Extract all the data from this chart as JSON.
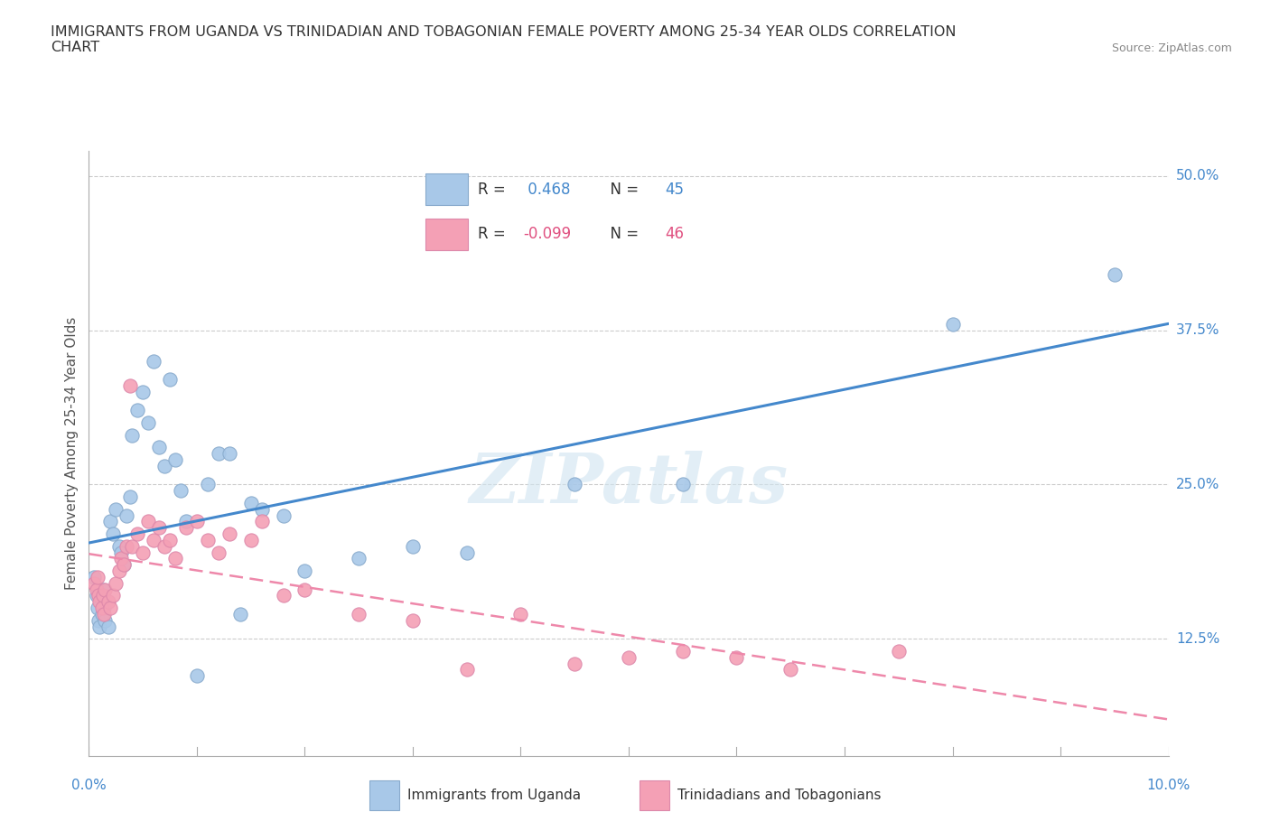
{
  "title": "IMMIGRANTS FROM UGANDA VS TRINIDADIAN AND TOBAGONIAN FEMALE POVERTY AMONG 25-34 YEAR OLDS CORRELATION\nCHART",
  "source": "Source: ZipAtlas.com",
  "ylabel": "Female Poverty Among 25-34 Year Olds",
  "xlim": [
    0.0,
    10.0
  ],
  "ylim": [
    3.0,
    52.0
  ],
  "ytick_vals": [
    12.5,
    25.0,
    37.5,
    50.0
  ],
  "ytick_labels": [
    "12.5%",
    "25.0%",
    "37.5%",
    "50.0%"
  ],
  "blue_color": "#a8c8e8",
  "pink_color": "#f4a0b5",
  "blue_line_color": "#4488cc",
  "pink_line_color": "#ee88aa",
  "watermark": "ZIPatlas",
  "uganda_scatter": [
    [
      0.05,
      17.5
    ],
    [
      0.07,
      16.0
    ],
    [
      0.08,
      15.0
    ],
    [
      0.09,
      14.0
    ],
    [
      0.1,
      13.5
    ],
    [
      0.12,
      14.5
    ],
    [
      0.13,
      16.5
    ],
    [
      0.14,
      15.0
    ],
    [
      0.15,
      14.0
    ],
    [
      0.18,
      13.5
    ],
    [
      0.2,
      22.0
    ],
    [
      0.22,
      21.0
    ],
    [
      0.25,
      23.0
    ],
    [
      0.28,
      20.0
    ],
    [
      0.3,
      19.5
    ],
    [
      0.32,
      18.5
    ],
    [
      0.35,
      22.5
    ],
    [
      0.38,
      24.0
    ],
    [
      0.4,
      29.0
    ],
    [
      0.45,
      31.0
    ],
    [
      0.5,
      32.5
    ],
    [
      0.55,
      30.0
    ],
    [
      0.6,
      35.0
    ],
    [
      0.65,
      28.0
    ],
    [
      0.7,
      26.5
    ],
    [
      0.75,
      33.5
    ],
    [
      0.8,
      27.0
    ],
    [
      0.85,
      24.5
    ],
    [
      0.9,
      22.0
    ],
    [
      1.0,
      9.5
    ],
    [
      1.1,
      25.0
    ],
    [
      1.2,
      27.5
    ],
    [
      1.3,
      27.5
    ],
    [
      1.4,
      14.5
    ],
    [
      1.5,
      23.5
    ],
    [
      1.6,
      23.0
    ],
    [
      1.8,
      22.5
    ],
    [
      2.0,
      18.0
    ],
    [
      2.5,
      19.0
    ],
    [
      3.0,
      20.0
    ],
    [
      3.5,
      19.5
    ],
    [
      4.5,
      25.0
    ],
    [
      5.5,
      25.0
    ],
    [
      8.0,
      38.0
    ],
    [
      9.5,
      42.0
    ]
  ],
  "trinidad_scatter": [
    [
      0.05,
      17.0
    ],
    [
      0.07,
      16.5
    ],
    [
      0.08,
      17.5
    ],
    [
      0.09,
      16.0
    ],
    [
      0.1,
      15.5
    ],
    [
      0.12,
      15.0
    ],
    [
      0.13,
      16.0
    ],
    [
      0.14,
      14.5
    ],
    [
      0.15,
      16.5
    ],
    [
      0.18,
      15.5
    ],
    [
      0.2,
      15.0
    ],
    [
      0.22,
      16.0
    ],
    [
      0.25,
      17.0
    ],
    [
      0.28,
      18.0
    ],
    [
      0.3,
      19.0
    ],
    [
      0.32,
      18.5
    ],
    [
      0.35,
      20.0
    ],
    [
      0.38,
      33.0
    ],
    [
      0.4,
      20.0
    ],
    [
      0.45,
      21.0
    ],
    [
      0.5,
      19.5
    ],
    [
      0.55,
      22.0
    ],
    [
      0.6,
      20.5
    ],
    [
      0.65,
      21.5
    ],
    [
      0.7,
      20.0
    ],
    [
      0.75,
      20.5
    ],
    [
      0.8,
      19.0
    ],
    [
      0.9,
      21.5
    ],
    [
      1.0,
      22.0
    ],
    [
      1.1,
      20.5
    ],
    [
      1.2,
      19.5
    ],
    [
      1.3,
      21.0
    ],
    [
      1.5,
      20.5
    ],
    [
      1.6,
      22.0
    ],
    [
      1.8,
      16.0
    ],
    [
      2.0,
      16.5
    ],
    [
      2.5,
      14.5
    ],
    [
      3.0,
      14.0
    ],
    [
      3.5,
      10.0
    ],
    [
      4.0,
      14.5
    ],
    [
      4.5,
      10.5
    ],
    [
      5.0,
      11.0
    ],
    [
      5.5,
      11.5
    ],
    [
      6.0,
      11.0
    ],
    [
      6.5,
      10.0
    ],
    [
      7.5,
      11.5
    ]
  ]
}
